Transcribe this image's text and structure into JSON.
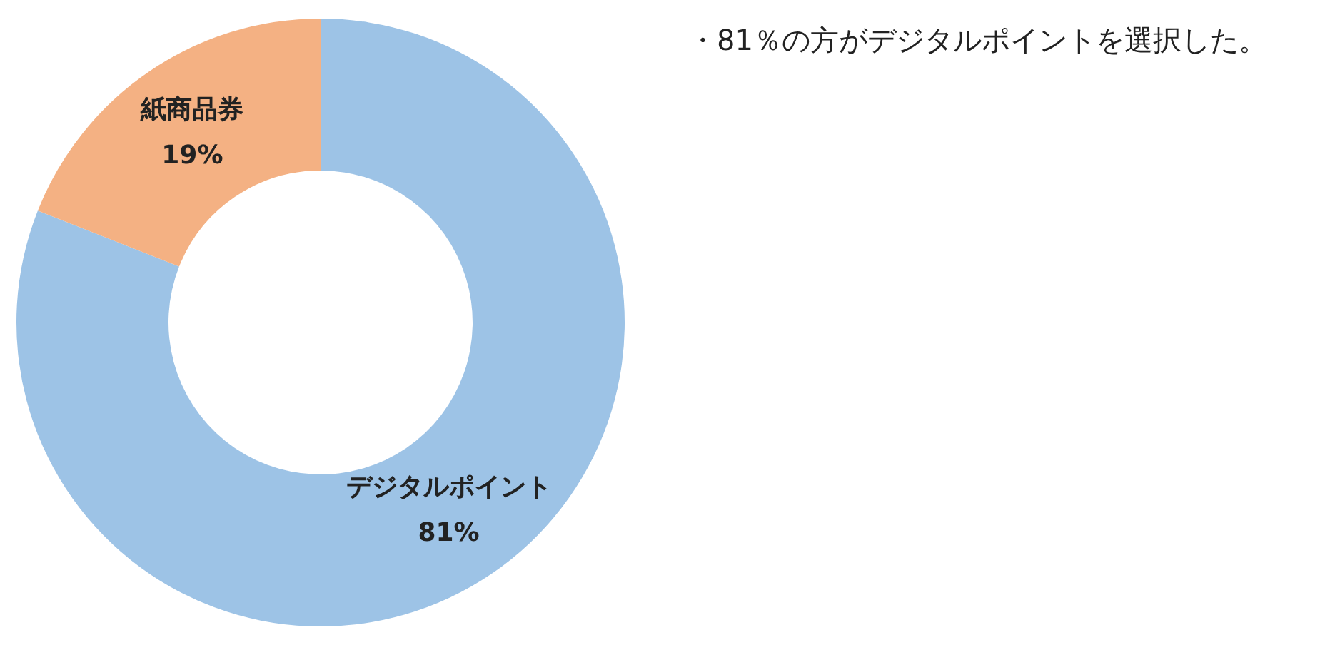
{
  "chart_data": {
    "type": "donut",
    "categories": [
      "デジタルポイント",
      "紙商品券"
    ],
    "values": [
      81,
      19
    ],
    "colors": [
      "#9dc3e6",
      "#f4b183"
    ],
    "value_labels": [
      "81%",
      "19%"
    ],
    "legend": false,
    "annotations": [
      "・81％の方がデジタルポイントを選択した。"
    ]
  }
}
